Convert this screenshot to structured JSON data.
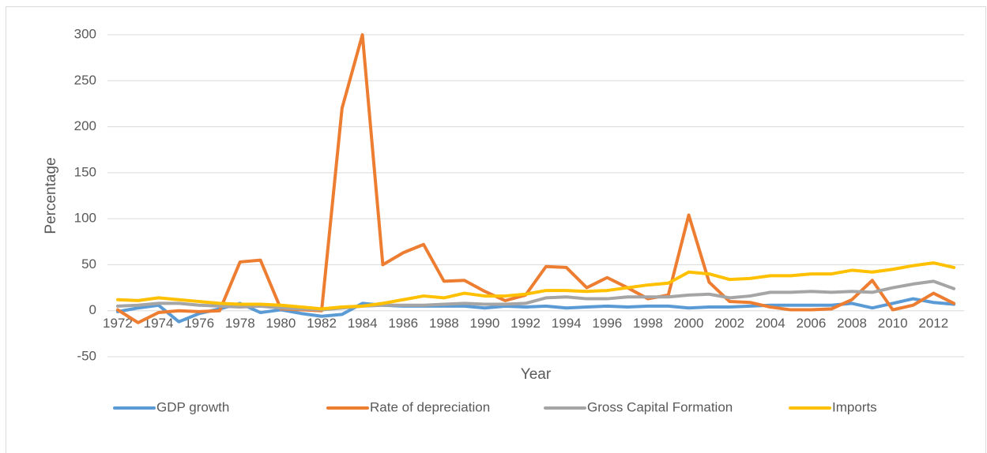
{
  "chart_data": {
    "type": "line",
    "x": [
      1972,
      1973,
      1974,
      1975,
      1976,
      1977,
      1978,
      1979,
      1980,
      1981,
      1982,
      1983,
      1984,
      1985,
      1986,
      1987,
      1988,
      1989,
      1990,
      1991,
      1992,
      1993,
      1994,
      1995,
      1996,
      1997,
      1998,
      1999,
      2000,
      2001,
      2002,
      2003,
      2004,
      2005,
      2006,
      2007,
      2008,
      2009,
      2010,
      2011,
      2012,
      2013
    ],
    "xlim": [
      1971.5,
      2013.5
    ],
    "xticks": [
      1972,
      1974,
      1976,
      1978,
      1980,
      1982,
      1984,
      1986,
      1988,
      1990,
      1992,
      1994,
      1996,
      1998,
      2000,
      2002,
      2004,
      2006,
      2008,
      2010,
      2012
    ],
    "ylim": [
      -50,
      300
    ],
    "yticks": [
      -50,
      0,
      50,
      100,
      150,
      200,
      250,
      300
    ],
    "xlabel": "Year",
    "ylabel": "Percentage",
    "grid": true,
    "legend": "bottom",
    "series": [
      {
        "name": "GDP growth",
        "color": "#5b9bd5",
        "values": [
          -1,
          3,
          6,
          -12,
          -3,
          2,
          8,
          -2,
          1,
          -3,
          -6,
          -4,
          8,
          6,
          5,
          5,
          5,
          5,
          3,
          5,
          4,
          5,
          3,
          4,
          5,
          4,
          5,
          5,
          3,
          4,
          4,
          5,
          6,
          6,
          6,
          6,
          8,
          3,
          8,
          13,
          9,
          7
        ]
      },
      {
        "name": "Rate of depreciation",
        "color": "#ed7d31",
        "values": [
          1,
          -13,
          -2,
          0,
          -1,
          0,
          53,
          55,
          2,
          1,
          0,
          220,
          300,
          50,
          63,
          72,
          32,
          33,
          21,
          11,
          17,
          48,
          47,
          25,
          36,
          25,
          13,
          17,
          104,
          31,
          10,
          9,
          4,
          1,
          1,
          2,
          12,
          33,
          1,
          6,
          19,
          8
        ]
      },
      {
        "name": "Gross Capital Formation",
        "color": "#a5a5a5",
        "values": [
          5,
          6,
          8,
          8,
          6,
          5,
          4,
          5,
          3,
          2,
          1,
          3,
          5,
          6,
          6,
          6,
          7,
          8,
          7,
          7,
          8,
          14,
          15,
          13,
          13,
          15,
          15,
          15,
          17,
          18,
          14,
          16,
          20,
          20,
          21,
          20,
          21,
          20,
          25,
          29,
          32,
          24
        ]
      },
      {
        "name": "Imports",
        "color": "#ffc000",
        "values": [
          12,
          11,
          14,
          12,
          10,
          8,
          7,
          7,
          6,
          4,
          2,
          4,
          5,
          8,
          12,
          16,
          14,
          19,
          16,
          16,
          18,
          22,
          22,
          21,
          22,
          25,
          28,
          30,
          42,
          40,
          34,
          35,
          38,
          38,
          40,
          40,
          44,
          42,
          45,
          49,
          52,
          47
        ]
      }
    ]
  }
}
